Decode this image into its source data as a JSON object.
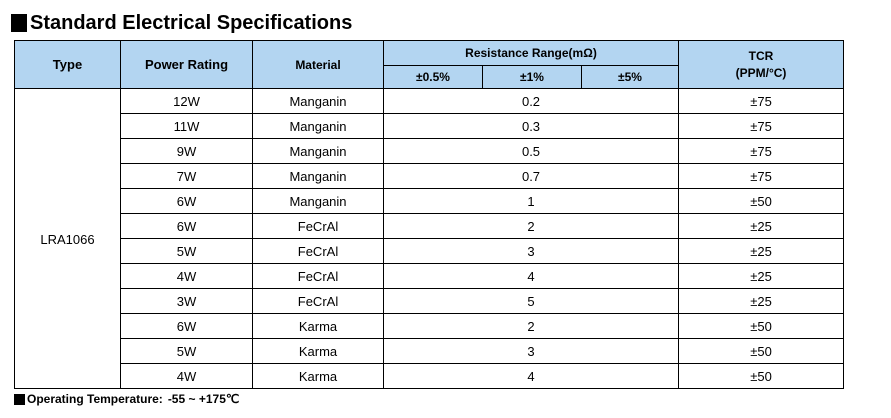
{
  "title": "Standard Electrical Specifications",
  "header": {
    "type": "Type",
    "power_rating": "Power Rating",
    "material": "Material",
    "resistance_range": "Resistance Range(mΩ)",
    "tol_05": "±0.5%",
    "tol_1": "±1%",
    "tol_5": "±5%",
    "tcr_line1": "TCR",
    "tcr_line2": "(PPM/°C)"
  },
  "type_value": "LRA1066",
  "rows": [
    {
      "power": "12W",
      "material": "Manganin",
      "resistance": "0.2",
      "tcr": "±75"
    },
    {
      "power": "11W",
      "material": "Manganin",
      "resistance": "0.3",
      "tcr": "±75"
    },
    {
      "power": "9W",
      "material": "Manganin",
      "resistance": "0.5",
      "tcr": "±75"
    },
    {
      "power": "7W",
      "material": "Manganin",
      "resistance": "0.7",
      "tcr": "±75"
    },
    {
      "power": "6W",
      "material": "Manganin",
      "resistance": "1",
      "tcr": "±50"
    },
    {
      "power": "6W",
      "material": "FeCrAl",
      "resistance": "2",
      "tcr": "±25"
    },
    {
      "power": "5W",
      "material": "FeCrAl",
      "resistance": "3",
      "tcr": "±25"
    },
    {
      "power": "4W",
      "material": "FeCrAl",
      "resistance": "4",
      "tcr": "±25"
    },
    {
      "power": "3W",
      "material": "FeCrAl",
      "resistance": "5",
      "tcr": "±25"
    },
    {
      "power": "6W",
      "material": "Karma",
      "resistance": "2",
      "tcr": "±50"
    },
    {
      "power": "5W",
      "material": "Karma",
      "resistance": "3",
      "tcr": "±50"
    },
    {
      "power": "4W",
      "material": "Karma",
      "resistance": "4",
      "tcr": "±50"
    }
  ],
  "footer": {
    "label": "Operating Temperature:",
    "value": "-55 ~ +175℃"
  },
  "colors": {
    "header_bg": "#b3d5f1",
    "border": "#000000"
  }
}
